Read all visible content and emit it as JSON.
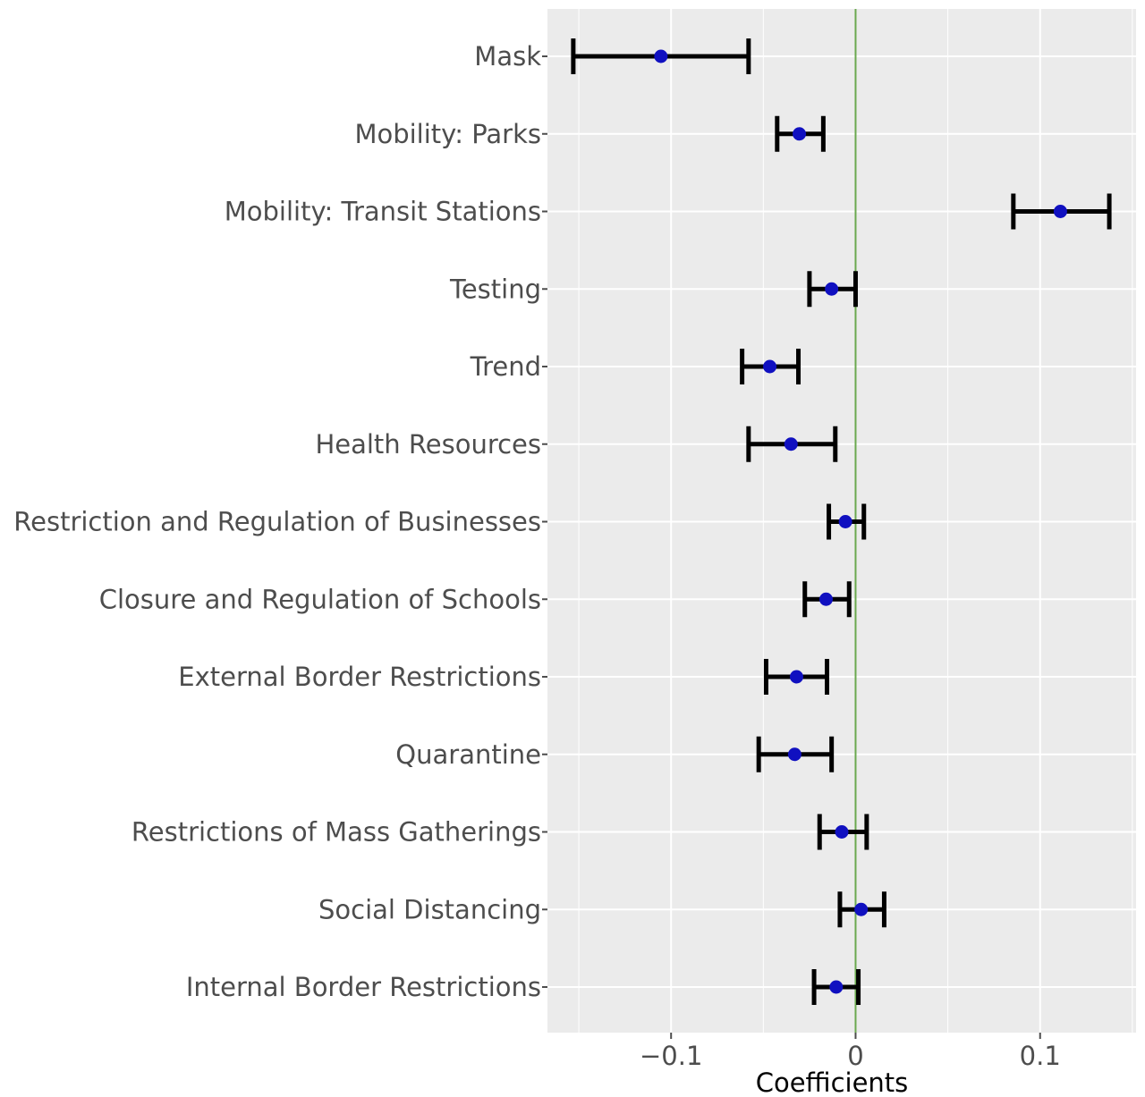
{
  "chart_data": {
    "type": "errorbar",
    "orientation": "horizontal",
    "xlabel": "Coefficients",
    "ylabel": "",
    "xlim": [
      -0.167,
      0.152
    ],
    "x_ticks": [
      {
        "value": -0.1,
        "label": "−0.1"
      },
      {
        "value": 0,
        "label": "0"
      },
      {
        "value": 0.1,
        "label": "0.1"
      }
    ],
    "reference_line": {
      "value": 0,
      "color": "#6aa84f"
    },
    "grid": true,
    "colors": {
      "panel": "#ebebeb",
      "grid": "#ffffff",
      "point": "#1010c0",
      "errorbar": "#000000"
    },
    "rows": [
      {
        "label": "Mask",
        "estimate": -0.1055,
        "lower": -0.153,
        "upper": -0.058
      },
      {
        "label": "Mobility: Parks",
        "estimate": -0.0305,
        "lower": -0.0425,
        "upper": -0.0175
      },
      {
        "label": "Mobility: Transit Stations",
        "estimate": 0.111,
        "lower": 0.0855,
        "upper": 0.1375
      },
      {
        "label": "Testing",
        "estimate": -0.013,
        "lower": -0.025,
        "upper": 0.0
      },
      {
        "label": "Trend",
        "estimate": -0.0465,
        "lower": -0.0615,
        "upper": -0.031
      },
      {
        "label": "Health Resources",
        "estimate": -0.035,
        "lower": -0.058,
        "upper": -0.011
      },
      {
        "label": "Restriction and Regulation of Businesses",
        "estimate": -0.0055,
        "lower": -0.0145,
        "upper": 0.0045
      },
      {
        "label": "Closure and Regulation of Schools",
        "estimate": -0.016,
        "lower": -0.0275,
        "upper": -0.0035
      },
      {
        "label": "External Border Restrictions",
        "estimate": -0.032,
        "lower": -0.0485,
        "upper": -0.0155
      },
      {
        "label": "Quarantine",
        "estimate": -0.033,
        "lower": -0.0525,
        "upper": -0.013
      },
      {
        "label": "Restrictions of Mass Gatherings",
        "estimate": -0.0075,
        "lower": -0.0195,
        "upper": 0.006
      },
      {
        "label": "Social Distancing",
        "estimate": 0.003,
        "lower": -0.0085,
        "upper": 0.0155
      },
      {
        "label": "Internal Border Restrictions",
        "estimate": -0.0105,
        "lower": -0.0225,
        "upper": 0.0015
      }
    ]
  }
}
